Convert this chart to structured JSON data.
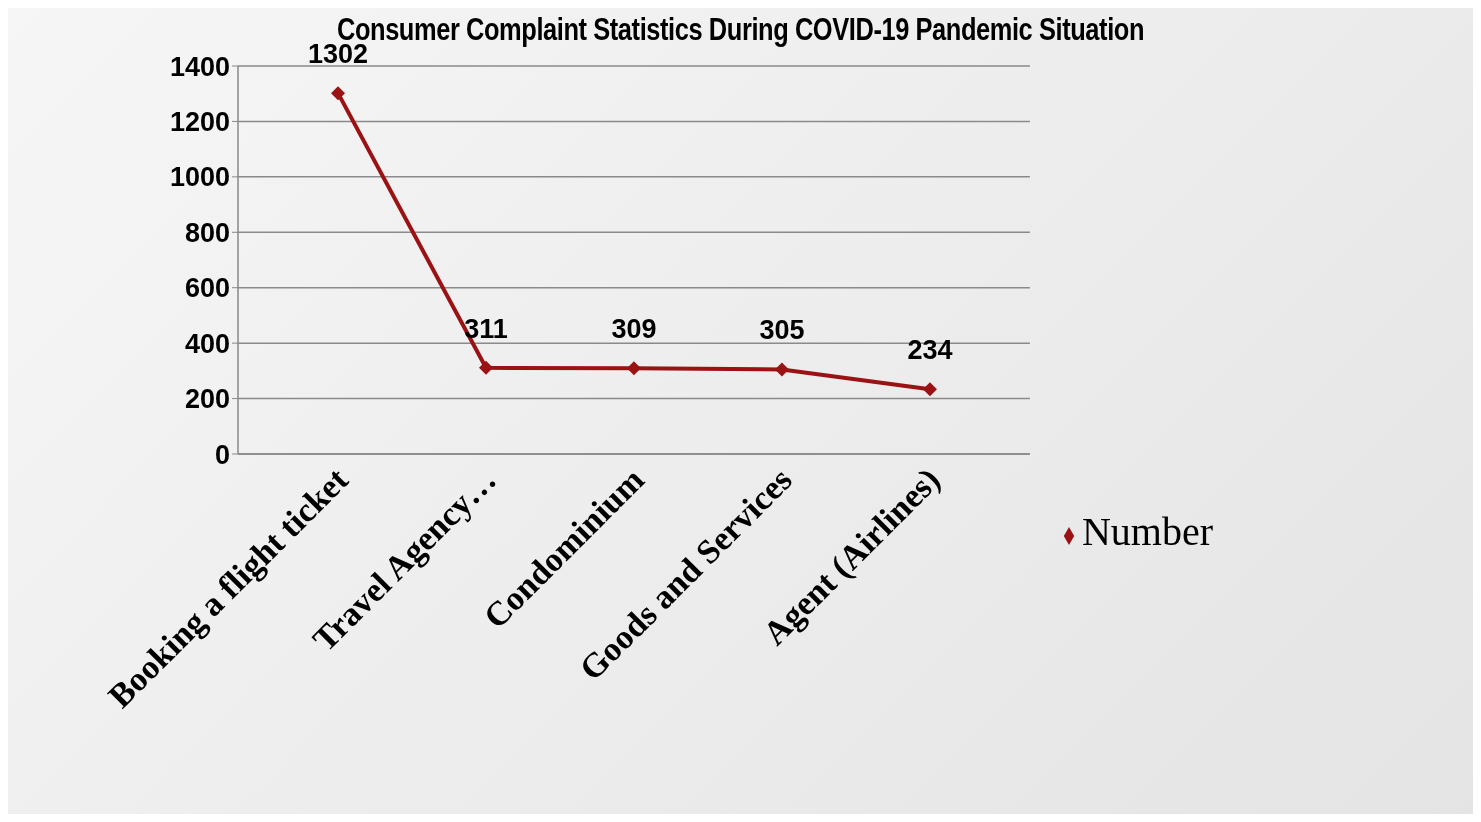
{
  "chart_data": {
    "type": "line",
    "title": "Consumer Complaint Statistics During COVID-19 Pandemic Situation",
    "categories": [
      "Booking a flight ticket",
      "Travel Agency…",
      "Condominium",
      "Goods and Services",
      "Agent (Airlines)"
    ],
    "series": [
      {
        "name": "Number",
        "color": "#9b1214",
        "values": [
          1302,
          311,
          309,
          305,
          234
        ]
      }
    ],
    "ylim": [
      0,
      1400
    ],
    "yticks": [
      0,
      200,
      400,
      600,
      800,
      1000,
      1200,
      1400
    ],
    "grid": "y",
    "legend": "right",
    "marker": "diamond",
    "data_labels": true
  }
}
